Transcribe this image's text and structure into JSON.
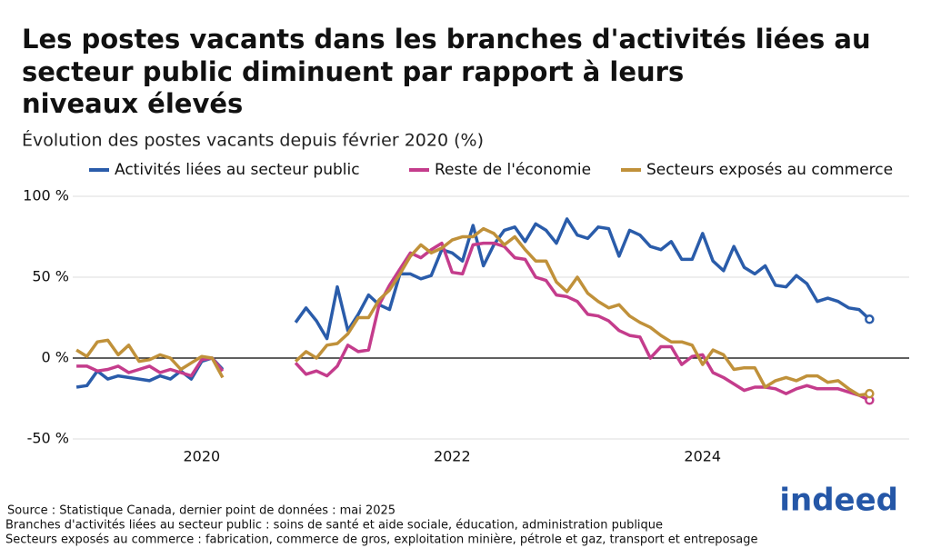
{
  "chart_data": {
    "type": "line",
    "title_lines": [
      "Les postes vacants dans les branches d'activités liées au",
      "secteur public diminuent par rapport à leurs",
      "niveaux élevés"
    ],
    "subtitle": "Évolution des postes vacants depuis février 2020 (%)",
    "x": [
      2019,
      2019.083,
      2019.167,
      2019.25,
      2019.333,
      2019.417,
      2019.5,
      2019.583,
      2019.667,
      2019.75,
      2019.833,
      2019.917,
      2020,
      2020.083,
      2020.167,
      2020.25,
      2020.333,
      2020.417,
      2020.5,
      2020.583,
      2020.667,
      2020.75,
      2020.833,
      2020.917,
      2021,
      2021.083,
      2021.167,
      2021.25,
      2021.333,
      2021.417,
      2021.5,
      2021.583,
      2021.667,
      2021.75,
      2021.833,
      2021.917,
      2022,
      2022.083,
      2022.167,
      2022.25,
      2022.333,
      2022.417,
      2022.5,
      2022.583,
      2022.667,
      2022.75,
      2022.833,
      2022.917,
      2023,
      2023.083,
      2023.167,
      2023.25,
      2023.333,
      2023.417,
      2023.5,
      2023.583,
      2023.667,
      2023.75,
      2023.833,
      2023.917,
      2024,
      2024.083,
      2024.167,
      2024.25,
      2024.333,
      2024.417,
      2024.5,
      2024.583,
      2024.667,
      2024.75,
      2024.833,
      2024.917,
      2025,
      2025.083,
      2025.167,
      2025.25,
      2025.333
    ],
    "series": [
      {
        "name": "Activités liées au secteur public",
        "color": "#2a5caa",
        "values": [
          -18,
          -17,
          -8,
          -13,
          -11,
          -12,
          -13,
          -14,
          -11,
          -13,
          -8,
          -13,
          -2,
          0,
          -7,
          null,
          null,
          null,
          null,
          null,
          null,
          22,
          31,
          23,
          12,
          44,
          17,
          27,
          39,
          33,
          30,
          52,
          52,
          49,
          51,
          67,
          65,
          60,
          82,
          57,
          70,
          79,
          81,
          72,
          83,
          79,
          71,
          86,
          76,
          74,
          81,
          80,
          63,
          79,
          76,
          69,
          67,
          72,
          61,
          61,
          77,
          60,
          54,
          69,
          56,
          52,
          57,
          45,
          44,
          51,
          46,
          35,
          37,
          35,
          31,
          30,
          24
        ]
      },
      {
        "name": "Reste de l'économie",
        "color": "#c43c8c",
        "values": [
          -5,
          -5,
          -8,
          -7,
          -5,
          -9,
          -7,
          -5,
          -9,
          -7,
          -9,
          -11,
          -1,
          0,
          -8,
          null,
          null,
          null,
          null,
          null,
          null,
          -3,
          -10,
          -8,
          -11,
          -5,
          8,
          4,
          5,
          33,
          45,
          55,
          65,
          62,
          67,
          71,
          53,
          52,
          70,
          71,
          71,
          69,
          62,
          61,
          50,
          48,
          39,
          38,
          35,
          27,
          26,
          23,
          17,
          14,
          13,
          0,
          7,
          7,
          -4,
          1,
          2,
          -9,
          -12,
          -16,
          -20,
          -18,
          -18,
          -19,
          -22,
          -19,
          -17,
          -19,
          -19,
          -19,
          -21,
          -23,
          -26
        ]
      },
      {
        "name": "Secteurs exposés au commerce",
        "color": "#c0913a",
        "values": [
          5,
          1,
          10,
          11,
          2,
          8,
          -2,
          -1,
          2,
          0,
          -7,
          -3,
          1,
          0,
          -12,
          null,
          null,
          null,
          null,
          null,
          null,
          -2,
          4,
          0,
          8,
          9,
          15,
          25,
          25,
          36,
          42,
          52,
          63,
          70,
          65,
          68,
          73,
          75,
          75,
          80,
          77,
          70,
          75,
          67,
          60,
          60,
          47,
          41,
          50,
          40,
          35,
          31,
          33,
          26,
          22,
          19,
          14,
          10,
          10,
          8,
          -4,
          5,
          2,
          -7,
          -6,
          -6,
          -18,
          -14,
          -12,
          -14,
          -11,
          -11,
          -15,
          -14,
          -19,
          -23,
          -22
        ]
      }
    ],
    "xlim": [
      2018.97,
      2025.65
    ],
    "xticks": [
      2020,
      2022,
      2024
    ],
    "ylim": [
      -50,
      100
    ],
    "yticks": [
      {
        "value": -50,
        "label": "-50 %"
      },
      {
        "value": 0,
        "label": "0 %"
      },
      {
        "value": 50,
        "label": "50 %"
      },
      {
        "value": 100,
        "label": "100 %"
      }
    ],
    "grid": true,
    "notes": [
      "Source : Statistique Canada, dernier point de données : mai 2025",
      "Branches d'activités liées au secteur public : soins de santé et aide sociale, éducation, administration publique",
      "Secteurs exposés au commerce : fabrication, commerce de gros, exploitation minière, pétrole et gaz, transport et entreposage"
    ],
    "logo": "indeed"
  }
}
